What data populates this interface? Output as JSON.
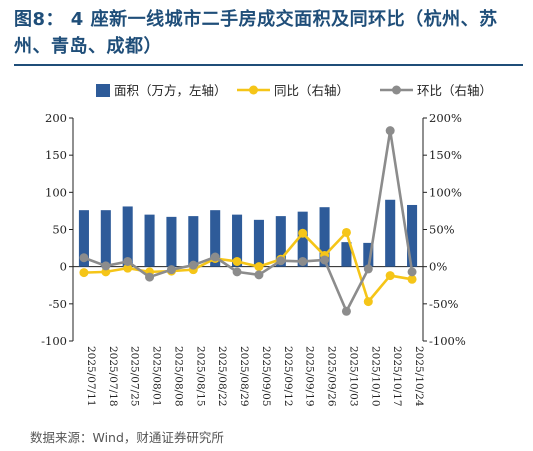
{
  "header": {
    "title": "图8：  4 座新一线城市二手房成交面积及同环比（杭州、苏州、青岛、成都）"
  },
  "footer": {
    "source": "数据来源：Wind，财通证券研究所"
  },
  "colors": {
    "bar": "#2e5b99",
    "yoy": "#f5c518",
    "mom": "#8c8c8c",
    "title": "#1f4e79"
  },
  "chart_data": {
    "type": "bar",
    "categories": [
      "2025/07/11",
      "2025/07/18",
      "2025/07/25",
      "2025/08/01",
      "2025/08/08",
      "2025/08/15",
      "2025/08/22",
      "2025/08/29",
      "2025/09/05",
      "2025/09/12",
      "2025/09/19",
      "2025/09/26",
      "2025/10/03",
      "2025/10/10",
      "2025/10/17",
      "2025/10/24"
    ],
    "series": [
      {
        "name": "面积（万方，左轴）",
        "type": "bar",
        "axis": "left",
        "values": [
          76,
          76,
          81,
          70,
          67,
          68,
          76,
          70,
          63,
          68,
          74,
          80,
          33,
          32,
          90,
          83
        ]
      },
      {
        "name": "同比（右轴）",
        "type": "line",
        "axis": "right",
        "values": [
          -8,
          -7,
          -2,
          -7,
          -6,
          -4,
          11,
          7,
          0,
          10,
          45,
          15,
          46,
          -47,
          -12,
          -17
        ]
      },
      {
        "name": "环比（右轴）",
        "type": "line",
        "axis": "right",
        "values": [
          12,
          1,
          7,
          -14,
          -4,
          2,
          13,
          -7,
          -11,
          8,
          7,
          9,
          -60,
          -3,
          183,
          -7
        ]
      }
    ],
    "left_axis": {
      "ylim": [
        -100,
        200
      ],
      "ticks": [
        -100,
        -50,
        0,
        50,
        100,
        150,
        200
      ]
    },
    "right_axis": {
      "ylim": [
        -100,
        200
      ],
      "ticks": [
        "-100%",
        "-50%",
        "0%",
        "50%",
        "100%",
        "150%",
        "200%"
      ]
    },
    "legend_position": "top",
    "grid": false
  }
}
